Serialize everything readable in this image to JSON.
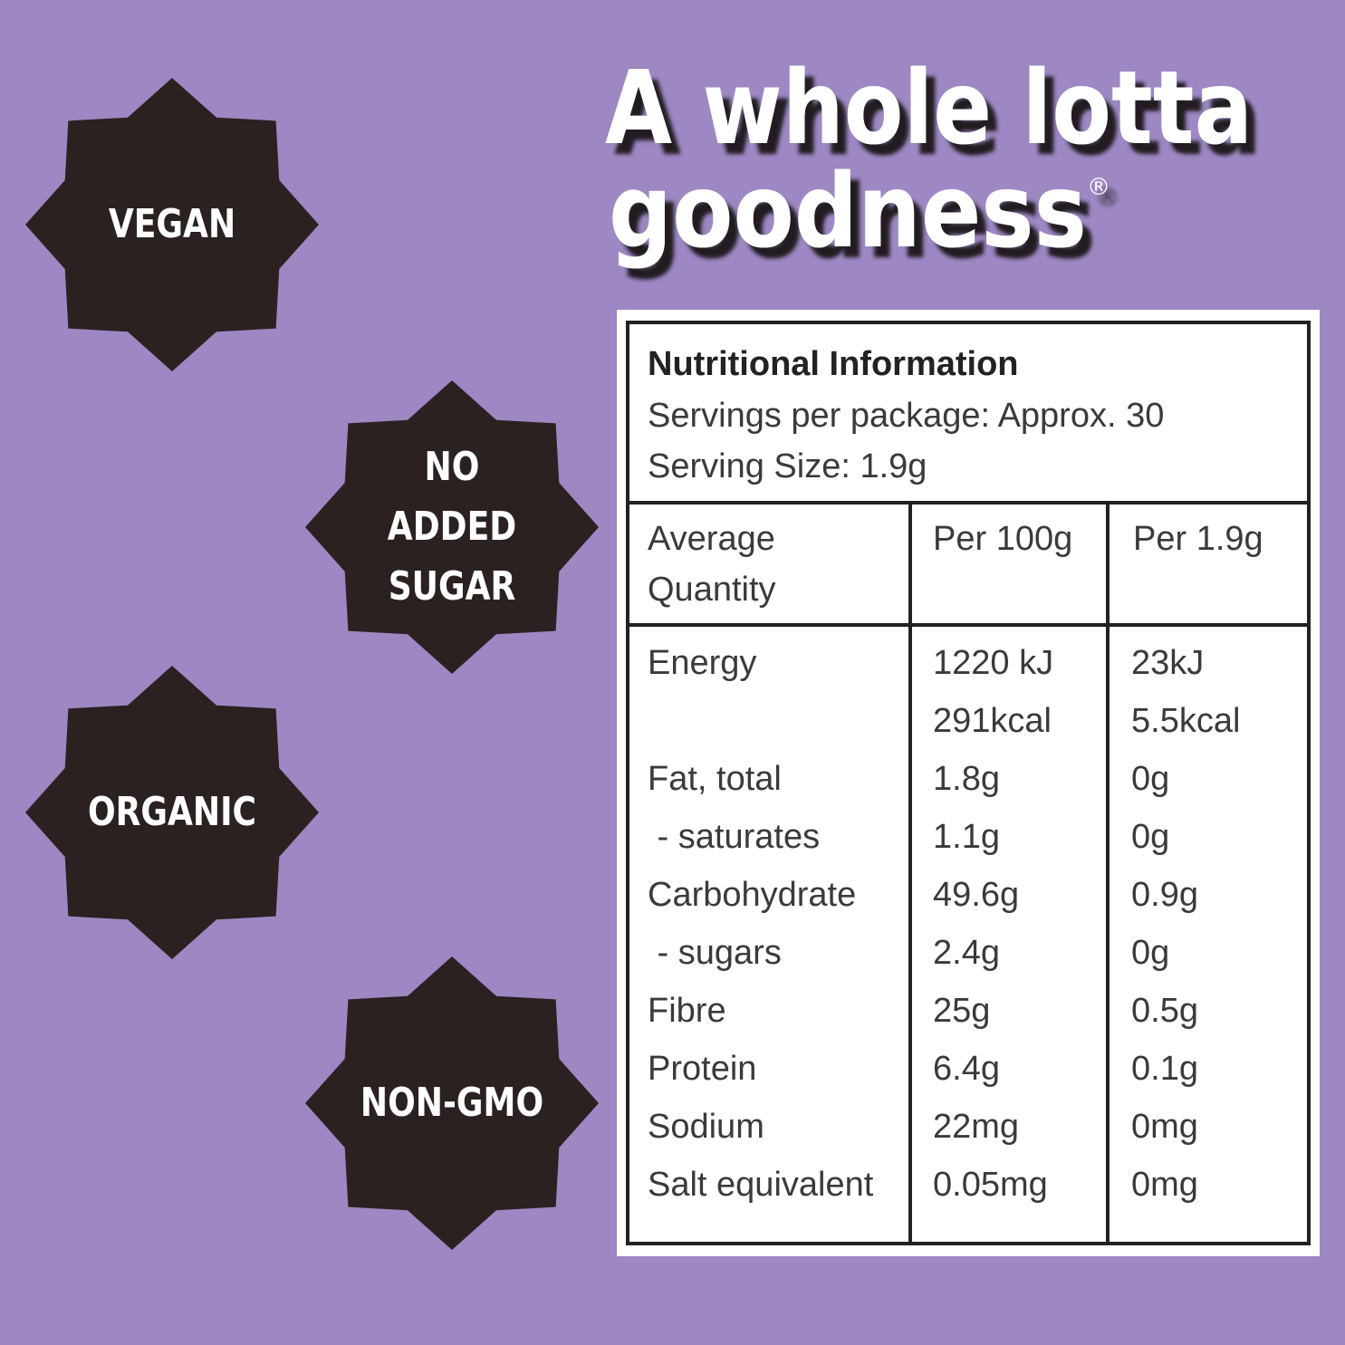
{
  "headline": {
    "line1": "A whole lotta",
    "line2": "goodness",
    "mark": "®"
  },
  "badges": [
    "VEGAN",
    "NO ADDED SUGAR",
    "ORGANIC",
    "NON-GMO"
  ],
  "table": {
    "title": "Nutritional Information",
    "servings": "Servings per package: Approx. 30",
    "serving_size": "Serving Size: 1.9g",
    "header": [
      "Average Quantity",
      "Per 100g",
      "Per 1.9g"
    ],
    "rows": [
      [
        "Energy",
        "1220 kJ",
        "23kJ"
      ],
      [
        null,
        "291kcal",
        "5.5kcal"
      ],
      [
        "Fat, total",
        "1.8g",
        "0g"
      ],
      [
        " - saturates",
        "1.1g",
        "0g"
      ],
      [
        "Carbohydrate",
        "49.6g",
        "0.9g"
      ],
      [
        " - sugars",
        "2.4g",
        "0g"
      ],
      [
        "Fibre",
        "25g",
        "0.5g"
      ],
      [
        "Protein",
        "6.4g",
        "0.1g"
      ],
      [
        "Sodium",
        "22mg",
        "0mg"
      ],
      [
        "Salt equivalent",
        "0.05mg",
        "0mg"
      ]
    ]
  }
}
